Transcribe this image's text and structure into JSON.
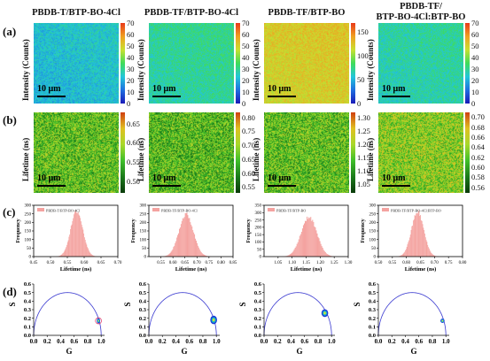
{
  "row_labels": [
    "(a)",
    "(b)",
    "(c)",
    "(d)"
  ],
  "columns": [
    {
      "title_lines": [
        "PBDB-T/BTP-BO-4Cl"
      ]
    },
    {
      "title_lines": [
        "PBDB-TF/BTP-BO-4Cl"
      ]
    },
    {
      "title_lines": [
        "PBDB-TF/BTP-BO"
      ]
    },
    {
      "title_lines": [
        "PBDB-TF/",
        "BTP-BO-4Cl:BTP-BO"
      ]
    }
  ],
  "scale_bar_label": "10 μm",
  "intensity_label": "Intensity (Counts)",
  "lifetime_label": "Lifetime (ns)",
  "colors": {
    "intensity_gradient": [
      "#1a1ab8",
      "#1f6fe0",
      "#22c7d9",
      "#3fdc5a",
      "#c8e030",
      "#f0a020",
      "#e83a1a"
    ],
    "lifetime_gradient": [
      "#0a3a0a",
      "#1b7a1b",
      "#3fbf2a",
      "#a8d82a",
      "#e0c020",
      "#d04010"
    ],
    "hist_fill": "#f4a3a0",
    "phasor_circle": "#3a3ad0",
    "phasor_blob_outer": "#1a3ad8",
    "phasor_blob_mid": "#20c0c0",
    "phasor_blob_core": "#f0e020",
    "phasor_ring": "#e03060"
  },
  "chart_data": [
    {
      "type": "heatmap",
      "panel": "a1",
      "colorbar_ticks": [
        "70",
        "60",
        "50",
        "40",
        "30",
        "20",
        "10",
        "0"
      ],
      "colorbar_range": [
        0,
        70
      ],
      "mean_level": 0.33
    },
    {
      "type": "heatmap",
      "panel": "a2",
      "colorbar_ticks": [
        "70",
        "60",
        "50",
        "40",
        "30",
        "20",
        "10",
        "0"
      ],
      "colorbar_range": [
        0,
        70
      ],
      "mean_level": 0.42
    },
    {
      "type": "heatmap",
      "panel": "a3",
      "colorbar_ticks": [
        "150",
        "100",
        "50",
        "0"
      ],
      "colorbar_range": [
        0,
        170
      ],
      "mean_level": 0.72
    },
    {
      "type": "heatmap",
      "panel": "a4",
      "colorbar_ticks": [
        "70",
        "60",
        "50",
        "40",
        "30",
        "20",
        "10",
        "0"
      ],
      "colorbar_range": [
        0,
        70
      ],
      "mean_level": 0.4
    },
    {
      "type": "heatmap",
      "panel": "b1",
      "colorbar_ticks": [
        "0.65",
        "0.60",
        "0.55",
        "0.50"
      ],
      "colorbar_range": [
        0.47,
        0.68
      ],
      "mean_level": 0.45
    },
    {
      "type": "heatmap",
      "panel": "b2",
      "colorbar_ticks": [
        "0.80",
        "0.75",
        "0.70",
        "0.65",
        "0.60",
        "0.55"
      ],
      "colorbar_range": [
        0.53,
        0.82
      ],
      "mean_level": 0.42
    },
    {
      "type": "heatmap",
      "panel": "b3",
      "colorbar_ticks": [
        "1.30",
        "1.25",
        "1.20",
        "1.15",
        "1.10",
        "1.05"
      ],
      "colorbar_range": [
        1.02,
        1.32
      ],
      "mean_level": 0.45
    },
    {
      "type": "heatmap",
      "panel": "b4",
      "colorbar_ticks": [
        "0.70",
        "0.68",
        "0.66",
        "0.64",
        "0.62",
        "0.60",
        "0.58",
        "0.56"
      ],
      "colorbar_range": [
        0.55,
        0.71
      ],
      "mean_level": 0.55
    },
    {
      "type": "bar",
      "panel": "c1",
      "legend": "PBDB-T/BTP-BO-4Cl",
      "xlabel": "Lifetime (ns)",
      "ylabel": "Frequency",
      "xlim": [
        0.45,
        0.7
      ],
      "xticks": [
        0.45,
        0.5,
        0.55,
        0.6,
        0.65,
        0.7
      ],
      "xtick_labels": [
        "0.45",
        "0.50",
        "0.55",
        "0.60",
        "0.65",
        "0.70"
      ],
      "ylim": [
        0,
        300
      ],
      "yticks": [
        0,
        50,
        100,
        150,
        200,
        250,
        300
      ],
      "ytick_labels": [
        "0",
        "50",
        "100",
        "150",
        "200",
        "250",
        "300"
      ],
      "peak_x": 0.578,
      "peak_y": 280,
      "sigma": 0.018
    },
    {
      "type": "bar",
      "panel": "c2",
      "legend": "PBDB-TF/BTP-BO-4Cl",
      "xlabel": "Lifetime (ns)",
      "ylabel": "Frequency",
      "xlim": [
        0.5,
        0.85
      ],
      "xticks": [
        0.55,
        0.6,
        0.65,
        0.7,
        0.75,
        0.8,
        0.85
      ],
      "xtick_labels": [
        "0.55",
        "0.60",
        "0.65",
        "0.70",
        "0.75",
        "0.80",
        "0.85"
      ],
      "ylim": [
        0,
        300
      ],
      "yticks": [
        0,
        50,
        100,
        150,
        200,
        250,
        300
      ],
      "ytick_labels": [
        "0",
        "50",
        "100",
        "150",
        "200",
        "250",
        "300"
      ],
      "peak_x": 0.655,
      "peak_y": 260,
      "sigma": 0.03
    },
    {
      "type": "bar",
      "panel": "c3",
      "legend": "PBDB-TF/BTP-BO",
      "xlabel": "Lifetime (ns)",
      "ylabel": "Frequency",
      "xlim": [
        1.0,
        1.3
      ],
      "xticks": [
        1.05,
        1.1,
        1.15,
        1.2,
        1.25,
        1.3
      ],
      "xtick_labels": [
        "1.05",
        "1.10",
        "1.15",
        "1.20",
        "1.25",
        "1.30"
      ],
      "ylim": [
        0,
        350
      ],
      "yticks": [
        0,
        50,
        100,
        150,
        200,
        250,
        300,
        350
      ],
      "ytick_labels": [
        "0",
        "50",
        "100",
        "150",
        "200",
        "250",
        "300",
        "350"
      ],
      "peak_x": 1.16,
      "peak_y": 285,
      "sigma": 0.028
    },
    {
      "type": "bar",
      "panel": "c4",
      "legend": "PBDB-TF/BTP-BO-4Cl:BTP-BO",
      "xlabel": "Lifetime (ns)",
      "ylabel": "Frequency",
      "xlim": [
        0.5,
        0.8
      ],
      "xticks": [
        0.5,
        0.55,
        0.6,
        0.65,
        0.7,
        0.75,
        0.8
      ],
      "xtick_labels": [
        "0.50",
        "0.55",
        "0.60",
        "0.65",
        "0.70",
        "0.75",
        "0.80"
      ],
      "ylim": [
        0,
        300
      ],
      "yticks": [
        0,
        50,
        100,
        150,
        200,
        250,
        300
      ],
      "ytick_labels": [
        "0",
        "50",
        "100",
        "150",
        "200",
        "250",
        "300"
      ],
      "peak_x": 0.64,
      "peak_y": 275,
      "sigma": 0.022
    },
    {
      "type": "scatter",
      "panel": "d1",
      "xlabel": "G",
      "ylabel": "S",
      "xlim": [
        0,
        1.05
      ],
      "ylim": [
        0,
        0.6
      ],
      "xticks": [
        0,
        0.2,
        0.4,
        0.6,
        0.8,
        1.0
      ],
      "xtick_labels": [
        "0.0",
        "0.2",
        "0.4",
        "0.6",
        "0.8",
        "1.0"
      ],
      "yticks": [
        0,
        0.1,
        0.2,
        0.3,
        0.4,
        0.5,
        0.6
      ],
      "ytick_labels": [
        "0.0",
        "0.1",
        "0.2",
        "0.3",
        "0.4",
        "0.5",
        "0.6"
      ],
      "cluster_center": [
        0.96,
        0.17
      ],
      "cluster_radius": [
        0.025,
        0.03
      ],
      "ring": true
    },
    {
      "type": "scatter",
      "panel": "d2",
      "xlabel": "G",
      "ylabel": "S",
      "xlim": [
        0,
        1.05
      ],
      "ylim": [
        0,
        0.6
      ],
      "xticks": [
        0,
        0.2,
        0.4,
        0.6,
        0.8,
        1.0
      ],
      "xtick_labels": [
        "0.0",
        "0.2",
        "0.4",
        "0.6",
        "0.8",
        "1.0"
      ],
      "yticks": [
        0,
        0.1,
        0.2,
        0.3,
        0.4,
        0.5,
        0.6
      ],
      "ytick_labels": [
        "0.0",
        "0.1",
        "0.2",
        "0.3",
        "0.4",
        "0.5",
        "0.6"
      ],
      "cluster_center": [
        0.96,
        0.18
      ],
      "cluster_radius": [
        0.05,
        0.05
      ],
      "ring": false
    },
    {
      "type": "scatter",
      "panel": "d3",
      "xlabel": "G",
      "ylabel": "S",
      "xlim": [
        0,
        1.05
      ],
      "ylim": [
        0,
        0.6
      ],
      "xticks": [
        0,
        0.2,
        0.4,
        0.6,
        0.8,
        1.0
      ],
      "xtick_labels": [
        "0.0",
        "0.2",
        "0.4",
        "0.6",
        "0.8",
        "1.0"
      ],
      "yticks": [
        0,
        0.1,
        0.2,
        0.3,
        0.4,
        0.5,
        0.6
      ],
      "ytick_labels": [
        "0.0",
        "0.1",
        "0.2",
        "0.3",
        "0.4",
        "0.5",
        "0.6"
      ],
      "cluster_center": [
        0.9,
        0.26
      ],
      "cluster_radius": [
        0.05,
        0.045
      ],
      "ring": false
    },
    {
      "type": "scatter",
      "panel": "d4",
      "xlabel": "G",
      "ylabel": "S",
      "xlim": [
        0,
        1.05
      ],
      "ylim": [
        0,
        0.6
      ],
      "xticks": [
        0,
        0.2,
        0.4,
        0.6,
        0.8,
        1.0
      ],
      "xtick_labels": [
        "0.0",
        "0.2",
        "0.4",
        "0.6",
        "0.8",
        "1.0"
      ],
      "yticks": [
        0,
        0.1,
        0.2,
        0.3,
        0.4,
        0.5,
        0.6
      ],
      "ytick_labels": [
        "0.0",
        "0.1",
        "0.2",
        "0.3",
        "0.4",
        "0.5",
        "0.6"
      ],
      "cluster_center": [
        0.95,
        0.17
      ],
      "cluster_radius": [
        0.03,
        0.025
      ],
      "ring": false
    }
  ]
}
